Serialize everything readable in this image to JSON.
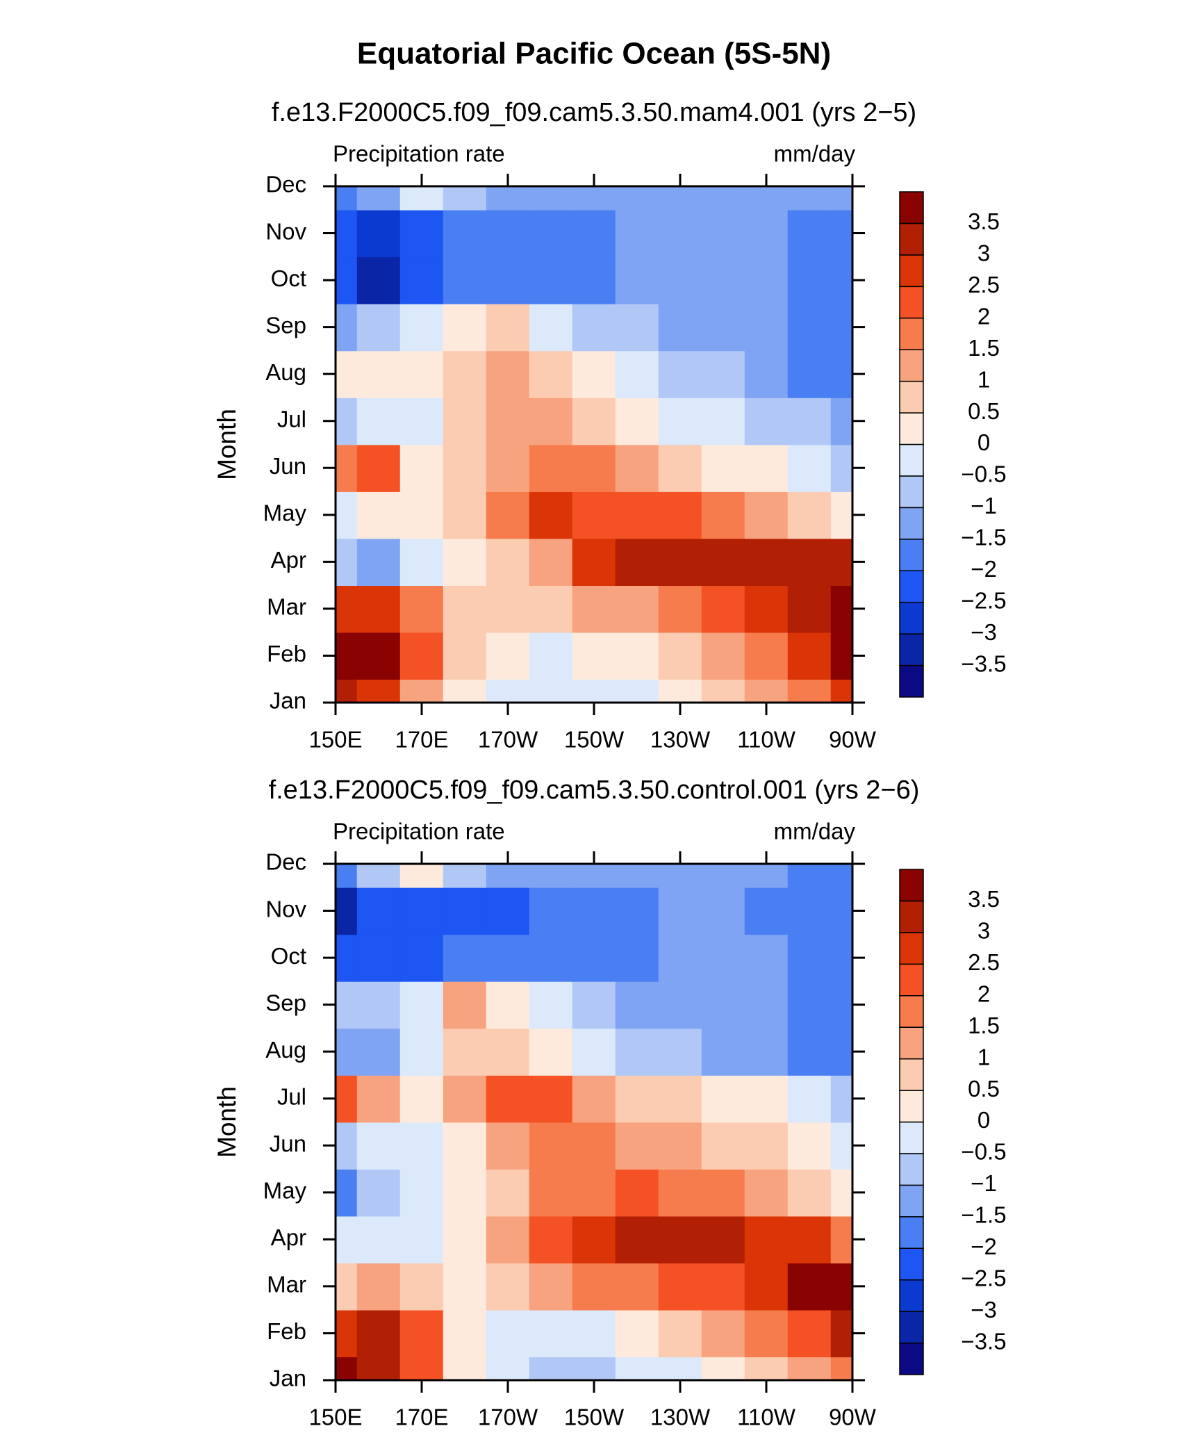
{
  "title": "Equatorial Pacific Ocean (5S-5N)",
  "chart_data": [
    {
      "type": "contour",
      "subtitle": "f.e13.F2000C5.f09_f09.cam5.3.50.mam4.001 (yrs 2−5)",
      "left_label": "Precipitation rate",
      "right_label": "mm/day",
      "y_label": "Month",
      "x": [
        150,
        160,
        170,
        180,
        190,
        200,
        210,
        220,
        230,
        240,
        250,
        260,
        270
      ],
      "xlim": [
        150,
        270
      ],
      "xticks": [
        {
          "value": 150,
          "label": "150E"
        },
        {
          "value": 170,
          "label": "170E"
        },
        {
          "value": 190,
          "label": "170W"
        },
        {
          "value": 210,
          "label": "150W"
        },
        {
          "value": 230,
          "label": "130W"
        },
        {
          "value": 250,
          "label": "110W"
        },
        {
          "value": 270,
          "label": "90W"
        }
      ],
      "categories": [
        "Jan",
        "Feb",
        "Mar",
        "Apr",
        "May",
        "Jun",
        "Jul",
        "Aug",
        "Sep",
        "Oct",
        "Nov",
        "Dec"
      ],
      "values": [
        [
          3,
          2.5,
          1,
          0,
          -0.5,
          -0.5,
          -0.5,
          -0.5,
          0,
          0.5,
          1,
          1.5,
          2.5
        ],
        [
          3.8,
          3.5,
          2,
          0.5,
          0,
          -0.5,
          0,
          0,
          0.5,
          1,
          1.5,
          2.5,
          3.5
        ],
        [
          2.5,
          2.5,
          1.5,
          0.5,
          0.5,
          0.5,
          1,
          1,
          1.5,
          2,
          2.5,
          3.2,
          3.8
        ],
        [
          -1,
          -1.2,
          -0.3,
          0.3,
          0.8,
          1.2,
          2.5,
          3,
          3,
          3,
          3,
          3,
          3
        ],
        [
          -0.5,
          0,
          0.2,
          0.5,
          1.5,
          2.5,
          2,
          2,
          2,
          1.5,
          1,
          0.5,
          0.2
        ],
        [
          1.5,
          2,
          0,
          0.5,
          1.2,
          1.8,
          1.5,
          1,
          0.5,
          0.2,
          0,
          -0.5,
          -1
        ],
        [
          -0.8,
          -0.5,
          -0.5,
          0.5,
          1,
          1,
          0.5,
          0.2,
          -0.2,
          -0.5,
          -0.7,
          -1,
          -1.5
        ],
        [
          0,
          0.2,
          0,
          0.5,
          1.2,
          0.5,
          0,
          -0.5,
          -0.8,
          -1,
          -1.2,
          -1.7,
          -1.7
        ],
        [
          -1.2,
          -0.8,
          -0.2,
          0.2,
          0.5,
          -0.5,
          -1,
          -1,
          -1.2,
          -1.3,
          -1.5,
          -1.7,
          -1.7
        ],
        [
          -2.5,
          -3.5,
          -2.5,
          -1.8,
          -1.6,
          -1.6,
          -1.7,
          -1.2,
          -1.2,
          -1.3,
          -1.4,
          -1.7,
          -1.8
        ],
        [
          -2.5,
          -3,
          -2.2,
          -1.8,
          -1.7,
          -1.8,
          -1.7,
          -1.3,
          -1.2,
          -1.2,
          -1.4,
          -1.8,
          -1.7
        ],
        [
          -1.8,
          -1.5,
          -0.5,
          -1,
          -1.2,
          -1.3,
          -1.3,
          -1.2,
          -1.2,
          -1.2,
          -1.3,
          -1.3,
          -1.3
        ]
      ],
      "levels": [
        {
          "value": -3.5,
          "label": "−3.5"
        },
        {
          "value": -3,
          "label": "−3"
        },
        {
          "value": -2.5,
          "label": "−2.5"
        },
        {
          "value": -2,
          "label": "−2"
        },
        {
          "value": -1.5,
          "label": "−1.5"
        },
        {
          "value": -1,
          "label": "−1"
        },
        {
          "value": -0.5,
          "label": "−0.5"
        },
        0,
        0.5,
        1,
        1.5,
        2,
        2.5,
        3,
        3.5
      ],
      "colors": [
        "#0b0a84",
        "#0a25a6",
        "#0b3ad0",
        "#1d56f2",
        "#4a7ff4",
        "#7fa4f3",
        "#b1c8f7",
        "#dbe9fb",
        "#fdeadc",
        "#fbcbb2",
        "#f8a37f",
        "#f67c4d",
        "#f45224",
        "#db3406",
        "#b11f05",
        "#8a0303"
      ]
    },
    {
      "type": "contour",
      "subtitle": "f.e13.F2000C5.f09_f09.cam5.3.50.control.001 (yrs 2−6)",
      "left_label": "Precipitation rate",
      "right_label": "mm/day",
      "y_label": "Month",
      "x": [
        150,
        160,
        170,
        180,
        190,
        200,
        210,
        220,
        230,
        240,
        250,
        260,
        270
      ],
      "xlim": [
        150,
        270
      ],
      "xticks": [
        {
          "value": 150,
          "label": "150E"
        },
        {
          "value": 170,
          "label": "170E"
        },
        {
          "value": 190,
          "label": "170W"
        },
        {
          "value": 210,
          "label": "150W"
        },
        {
          "value": 230,
          "label": "130W"
        },
        {
          "value": 250,
          "label": "110W"
        },
        {
          "value": 270,
          "label": "90W"
        }
      ],
      "categories": [
        "Jan",
        "Feb",
        "Mar",
        "Apr",
        "May",
        "Jun",
        "Jul",
        "Aug",
        "Sep",
        "Oct",
        "Nov",
        "Dec"
      ],
      "values": [
        [
          3.8,
          3,
          2,
          0,
          -0.5,
          -0.8,
          -0.8,
          -0.5,
          -0.3,
          0,
          0.5,
          1,
          1.5
        ],
        [
          2.5,
          3,
          2,
          0,
          -0.3,
          -0.5,
          -0.3,
          0,
          0.5,
          1,
          1.5,
          2,
          3
        ],
        [
          0.5,
          1,
          0.5,
          0,
          0.5,
          1,
          1.5,
          1.8,
          2,
          2.3,
          2.8,
          3.5,
          3.8
        ],
        [
          -0.5,
          -0.3,
          -0.2,
          0.2,
          1,
          2,
          2.8,
          3,
          3,
          3,
          2.8,
          2.5,
          1.8
        ],
        [
          -2,
          -1,
          -0.3,
          0,
          0.8,
          1.5,
          1.8,
          2,
          1.8,
          1.5,
          1.2,
          0.8,
          0.3
        ],
        [
          -0.8,
          -0.3,
          -0.3,
          0.2,
          1,
          1.5,
          1.5,
          1.2,
          1,
          0.8,
          0.5,
          0.2,
          -0.5
        ],
        [
          2,
          1,
          0,
          1,
          2,
          2.2,
          1.2,
          0.8,
          0.5,
          0.2,
          0,
          -0.3,
          -0.8
        ],
        [
          -1.2,
          -1.5,
          -0.5,
          0.5,
          0.5,
          0.2,
          -0.3,
          -0.8,
          -1,
          -1.1,
          -1.2,
          -1.6,
          -1.6
        ],
        [
          -1,
          -1,
          -0.5,
          1,
          0.3,
          -0.5,
          -1,
          -1.2,
          -1.3,
          -1.4,
          -1.5,
          -1.7,
          -1.7
        ],
        [
          -2.5,
          -2.5,
          -2.2,
          -2,
          -1.8,
          -1.7,
          -1.8,
          -1.6,
          -1.5,
          -1.4,
          -1.5,
          -1.8,
          -2
        ],
        [
          -3.5,
          -2.5,
          -2.2,
          -2.2,
          -2.3,
          -1.8,
          -1.8,
          -1.8,
          -1.5,
          -1.4,
          -1.6,
          -1.9,
          -2
        ],
        [
          -2,
          -1,
          0.2,
          -1,
          -1.2,
          -1.3,
          -1.3,
          -1.3,
          -1.3,
          -1.3,
          -1.4,
          -1.6,
          -1.9
        ]
      ],
      "levels": [
        {
          "value": -3.5,
          "label": "−3.5"
        },
        {
          "value": -3,
          "label": "−3"
        },
        {
          "value": -2.5,
          "label": "−2.5"
        },
        {
          "value": -2,
          "label": "−2"
        },
        {
          "value": -1.5,
          "label": "−1.5"
        },
        {
          "value": -1,
          "label": "−1"
        },
        {
          "value": -0.5,
          "label": "−0.5"
        },
        0,
        0.5,
        1,
        1.5,
        2,
        2.5,
        3,
        3.5
      ],
      "colors": [
        "#0b0a84",
        "#0a25a6",
        "#0b3ad0",
        "#1d56f2",
        "#4a7ff4",
        "#7fa4f3",
        "#b1c8f7",
        "#dbe9fb",
        "#fdeadc",
        "#fbcbb2",
        "#f8a37f",
        "#f67c4d",
        "#f45224",
        "#db3406",
        "#b11f05",
        "#8a0303"
      ]
    }
  ]
}
